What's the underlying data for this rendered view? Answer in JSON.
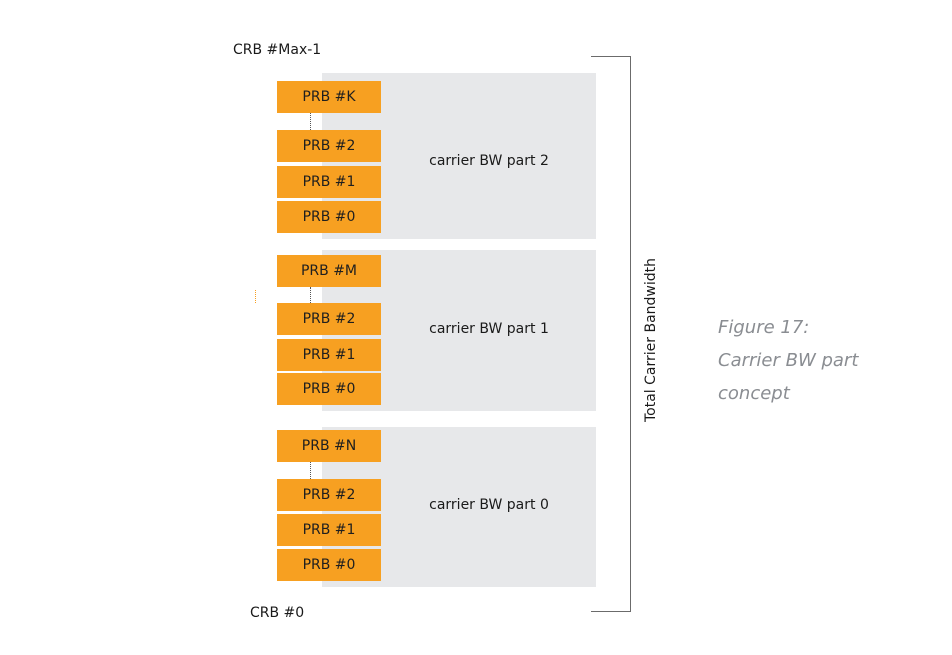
{
  "crb_top_label": "CRB #Max-1",
  "crb_bottom_label": "CRB #0",
  "bracket_label": "Total Carrier Bandwidth",
  "caption": {
    "line1": "Figure 17:",
    "line2": "Carrier BW part",
    "line3": "concept"
  },
  "parts": [
    {
      "label": "carrier BW part 2",
      "prbs": [
        "PRB #K",
        "PRB #2",
        "PRB #1",
        "PRB #0"
      ]
    },
    {
      "label": "carrier BW part 1",
      "prbs": [
        "PRB #M",
        "PRB #2",
        "PRB #1",
        "PRB #0"
      ]
    },
    {
      "label": "carrier BW part 0",
      "prbs": [
        "PRB #N",
        "PRB #2",
        "PRB #1",
        "PRB #0"
      ]
    }
  ],
  "colors": {
    "prb_fill": "#f7a021",
    "part_background": "#e7e8ea",
    "bracket_line": "#6b6b6b",
    "caption_text": "#8a8d92"
  }
}
